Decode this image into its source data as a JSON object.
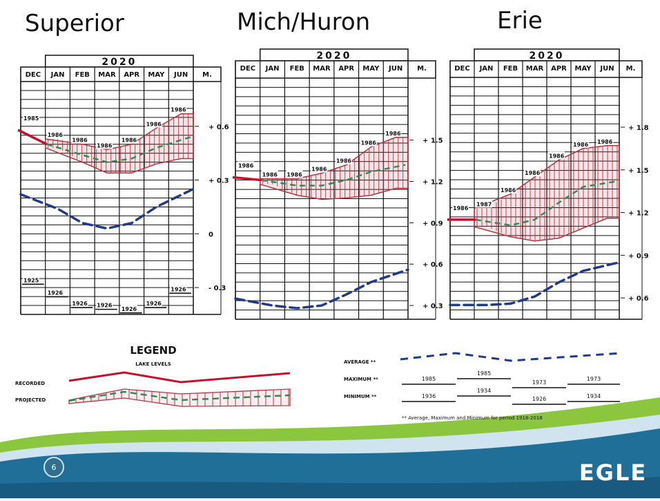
{
  "slide": {
    "brand": "EGLE",
    "page_number": "6",
    "colors": {
      "recorded": "#c8102e",
      "projected": "#2e8b57",
      "range": "#b8323c",
      "average": "#1f3a8a",
      "wave_green": "#8cc63f",
      "wave_blue": "#1f6f99",
      "wave_pale": "#cfe4ee"
    }
  },
  "panels": [
    {
      "title": "Superior",
      "year": "2020",
      "months": [
        "DEC",
        "JAN",
        "FEB",
        "MAR",
        "APR",
        "MAY",
        "JUN"
      ],
      "unit": "M.",
      "ticks": [
        "+ 0.6",
        "+ 0.3",
        "0",
        "- 0.3"
      ],
      "hi_labels": [
        "1985",
        "1986",
        "1986",
        "1986",
        "1986",
        "1986",
        "1986"
      ],
      "lo_labels": [
        "1925",
        "1926",
        "1926",
        "1926",
        "1926",
        "1926",
        "1926"
      ]
    },
    {
      "title": "Mich/Huron",
      "year": "2020",
      "months": [
        "DEC",
        "JAN",
        "FEB",
        "MAR",
        "APR",
        "MAY",
        "JUN"
      ],
      "unit": "M.",
      "ticks": [
        "+ 1.5",
        "+ 1.2",
        "+ 0.9",
        "+ 0.6",
        "+ 0.3"
      ],
      "hi_labels": [
        "1986",
        "1986",
        "1986",
        "1986",
        "1986",
        "1986",
        "1986"
      ],
      "lo_labels": []
    },
    {
      "title": "Erie",
      "year": "2020",
      "months": [
        "DEC",
        "JAN",
        "FEB",
        "MAR",
        "APR",
        "MAY",
        "JUN"
      ],
      "unit": "M.",
      "ticks": [
        "+ 1.8",
        "+ 1.5",
        "+ 1.2",
        "+ 0.9",
        "+ 0.6"
      ],
      "hi_labels": [
        "1986",
        "1987",
        "1986",
        "1986",
        "1986",
        "1986",
        "1986"
      ],
      "lo_labels": []
    }
  ],
  "chart_data": [
    {
      "type": "line",
      "title": "Superior",
      "x": [
        "DEC",
        "JAN",
        "FEB",
        "MAR",
        "APR",
        "MAY",
        "JUN"
      ],
      "ylim": [
        -0.45,
        0.85
      ],
      "ylabel": "M.",
      "series": [
        {
          "name": "RECORDED",
          "values": [
            0.58,
            0.5,
            null,
            null,
            null,
            null,
            null
          ]
        },
        {
          "name": "PROJECTED",
          "values": [
            null,
            0.5,
            0.44,
            0.4,
            0.42,
            0.48,
            0.54
          ]
        },
        {
          "name": "AVERAGE",
          "values": [
            0.22,
            0.14,
            0.06,
            0.03,
            0.06,
            0.15,
            0.25
          ]
        }
      ],
      "range": {
        "max": [
          null,
          0.53,
          0.5,
          0.47,
          0.5,
          0.59,
          0.67
        ],
        "min": [
          null,
          0.48,
          0.4,
          0.34,
          0.34,
          0.39,
          0.42
        ]
      }
    },
    {
      "type": "line",
      "title": "Mich/Huron",
      "x": [
        "DEC",
        "JAN",
        "FEB",
        "MAR",
        "APR",
        "MAY",
        "JUN"
      ],
      "ylim": [
        0.2,
        1.95
      ],
      "ylabel": "M.",
      "series": [
        {
          "name": "RECORDED",
          "values": [
            1.23,
            1.21,
            null,
            null,
            null,
            null,
            null
          ]
        },
        {
          "name": "PROJECTED",
          "values": [
            null,
            1.21,
            1.17,
            1.17,
            1.21,
            1.27,
            1.32
          ]
        },
        {
          "name": "AVERAGE",
          "values": [
            0.35,
            0.3,
            0.28,
            0.3,
            0.38,
            0.47,
            0.56
          ]
        }
      ],
      "range": {
        "max": [
          null,
          1.22,
          1.22,
          1.26,
          1.32,
          1.45,
          1.52
        ],
        "min": [
          null,
          1.18,
          1.1,
          1.07,
          1.08,
          1.1,
          1.15
        ]
      }
    },
    {
      "type": "line",
      "title": "Erie",
      "x": [
        "DEC",
        "JAN",
        "FEB",
        "MAR",
        "APR",
        "MAY",
        "JUN"
      ],
      "ylim": [
        0.45,
        2.15
      ],
      "ylabel": "M.",
      "series": [
        {
          "name": "RECORDED",
          "values": [
            1.15,
            1.15,
            null,
            null,
            null,
            null,
            null
          ]
        },
        {
          "name": "PROJECTED",
          "values": [
            null,
            1.15,
            1.11,
            1.15,
            1.27,
            1.38,
            1.42
          ]
        },
        {
          "name": "AVERAGE",
          "values": [
            0.55,
            0.55,
            0.56,
            0.61,
            0.71,
            0.79,
            0.85
          ]
        }
      ],
      "range": {
        "max": [
          null,
          1.23,
          1.33,
          1.45,
          1.57,
          1.65,
          1.67
        ],
        "min": [
          null,
          1.1,
          1.03,
          1.0,
          1.02,
          1.09,
          1.16
        ]
      }
    }
  ],
  "legend": {
    "title": "LEGEND",
    "subtitle": "LAKE LEVELS",
    "recorded_label": "RECORDED",
    "projected_label": "PROJECTED",
    "average_label": "AVERAGE **",
    "maximum_label": "MAXIMUM **",
    "minimum_label": "MINIMUM **",
    "max_years": [
      "1985",
      "1985",
      "1973",
      "1973"
    ],
    "min_years": [
      "1936",
      "1934",
      "1926",
      "1934"
    ],
    "footnote": "** Average, Maximum and Minimum for period 1918-2018"
  }
}
